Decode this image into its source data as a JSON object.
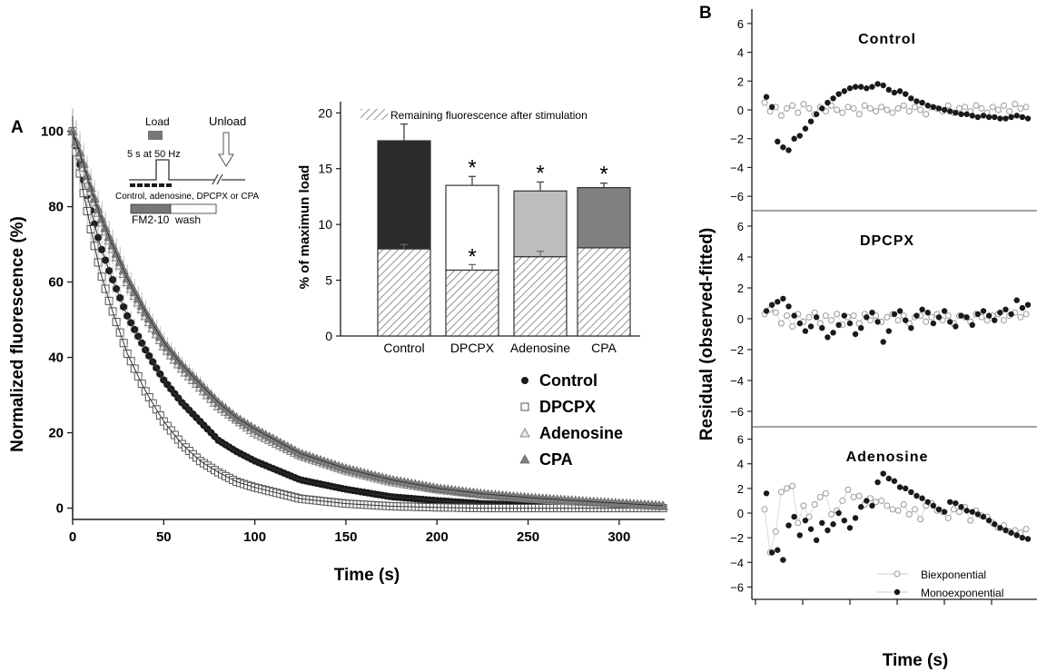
{
  "panel_labels": {
    "a": "A",
    "b": "B"
  },
  "colors": {
    "black": "#1a1a1a",
    "control_bar": "#2a2a2a",
    "adenosine_bar": "#bdbdbd",
    "cpa_bar": "#808080",
    "white": "#ffffff",
    "hatch": "#9a9a9a",
    "load_bar": "#777777",
    "trace": "#7a7a7a"
  },
  "protocol_inset": {
    "load_label": "Load",
    "unload_label": "Unload",
    "stim_label": "5 s at 50 Hz",
    "drugs_label": "Control, adenosine, DPCPX or CPA",
    "dye_label": "FM2-10",
    "wash_label": "wash"
  },
  "chart_data": [
    {
      "id": "decay",
      "type": "scatter",
      "title": "",
      "xlabel": "Time (s)",
      "ylabel": "Normalized fluorescence (%)",
      "xlim": [
        0,
        325
      ],
      "ylim": [
        -3,
        104
      ],
      "xticks": [
        0,
        50,
        100,
        150,
        200,
        250,
        300
      ],
      "yticks": [
        0,
        20,
        40,
        60,
        80,
        100
      ],
      "legend_position": "right",
      "series": [
        {
          "name": "Control",
          "marker": "filled-circle",
          "x": [
            0,
            5,
            10,
            15,
            20,
            30,
            40,
            50,
            60,
            70,
            80,
            90,
            100,
            125,
            150,
            175,
            200,
            225,
            250,
            275,
            300,
            325
          ],
          "y": [
            100,
            89,
            79,
            70,
            63,
            51,
            42,
            34,
            28,
            23,
            18,
            15,
            12.5,
            7.5,
            5,
            3,
            2,
            1.2,
            0.8,
            0.5,
            0.2,
            0
          ]
        },
        {
          "name": "DPCPX",
          "marker": "open-square",
          "x": [
            0,
            5,
            10,
            15,
            20,
            30,
            40,
            50,
            60,
            70,
            80,
            90,
            100,
            125,
            150,
            175,
            200,
            225,
            250,
            275,
            300,
            325
          ],
          "y": [
            100,
            86,
            74,
            63,
            55,
            41,
            31,
            23,
            17,
            12.5,
            9.5,
            7,
            5.5,
            2.5,
            1.2,
            0.5,
            0.2,
            0,
            0,
            0,
            0,
            0
          ]
        },
        {
          "name": "Adenosine",
          "marker": "open-triangle",
          "x": [
            0,
            5,
            10,
            15,
            20,
            30,
            40,
            50,
            60,
            70,
            80,
            90,
            100,
            125,
            150,
            175,
            200,
            225,
            250,
            275,
            300,
            325
          ],
          "y": [
            100,
            92,
            84,
            77,
            71,
            60,
            51,
            43,
            37,
            32,
            27,
            23.5,
            20,
            14,
            10,
            7,
            5,
            3.6,
            2.6,
            1.8,
            1.2,
            0.5
          ]
        },
        {
          "name": "CPA",
          "marker": "filled-triangle",
          "x": [
            0,
            5,
            10,
            15,
            20,
            30,
            40,
            50,
            60,
            70,
            80,
            90,
            100,
            125,
            150,
            175,
            200,
            225,
            250,
            275,
            300,
            325
          ],
          "y": [
            100,
            93,
            85,
            78,
            72,
            61,
            52,
            44,
            38,
            33,
            28,
            24,
            21,
            14.5,
            10.5,
            7.5,
            5.3,
            3.8,
            2.8,
            2,
            1.3,
            0.6
          ]
        }
      ]
    },
    {
      "id": "inset-bars",
      "type": "bar",
      "title": "",
      "xlabel": "",
      "ylabel": "% of maximun load",
      "ylim": [
        0,
        21
      ],
      "yticks": [
        0,
        5,
        10,
        15,
        20
      ],
      "legend_position": "top",
      "legend": "Remaining fluorescence after stimulation",
      "categories": [
        "Control",
        "DPCPX",
        "Adenosine",
        "CPA"
      ],
      "series": [
        {
          "name": "Remaining fluorescence after stimulation",
          "values": [
            7.8,
            5.9,
            7.1,
            7.9
          ],
          "errors": [
            0.4,
            0.5,
            0.5,
            0
          ]
        },
        {
          "name": "",
          "values": [
            17.5,
            13.5,
            13.0,
            13.3
          ],
          "errors": [
            1.5,
            0.8,
            0.8,
            0.4
          ]
        }
      ],
      "significance": {
        "total": [
          "",
          "*",
          "*",
          "*"
        ],
        "remaining": [
          "",
          "*",
          "",
          ""
        ]
      }
    },
    {
      "id": "residuals",
      "type": "scatter",
      "ylabel": "Residual (observed-fitted)",
      "xlabel": "Time (s)",
      "ylim": [
        -7,
        7
      ],
      "yticks": [
        -6,
        -4,
        -2,
        0,
        2,
        4,
        6
      ],
      "legend_position": "bottom-right",
      "legend": [
        "Biexponential",
        "Monoexponential"
      ],
      "panels": [
        {
          "title": "Control",
          "monoexponential": [
            0.9,
            0.2,
            -2.2,
            -2.6,
            -2.8,
            -2.0,
            -1.8,
            -1.3,
            -0.8,
            -0.3,
            0.1,
            0.5,
            0.8,
            1.1,
            1.3,
            1.5,
            1.6,
            1.6,
            1.5,
            1.6,
            1.8,
            1.7,
            1.4,
            1.2,
            1.3,
            1.1,
            0.8,
            0.6,
            0.5,
            0.3,
            0.2,
            0.1,
            0,
            -0.1,
            -0.2,
            -0.3,
            -0.3,
            -0.4,
            -0.5,
            -0.4,
            -0.5,
            -0.5,
            -0.6,
            -0.6,
            -0.5,
            -0.4,
            -0.5,
            -0.6
          ],
          "biexponential": [
            0.5,
            -0.1,
            0.2,
            -0.4,
            0.1,
            0.3,
            -0.2,
            0.4,
            0.1,
            -0.3,
            0.2,
            -0.1,
            0.3,
            0,
            -0.2,
            0.2,
            0.1,
            -0.3,
            0.3,
            0.1,
            -0.1,
            0.2,
            0,
            -0.2,
            0.1,
            0.3,
            -0.1,
            0.2,
            0,
            -0.3,
            0.2,
            0.1,
            -0.1,
            0.3,
            -0.2,
            0.1,
            0.2,
            -0.1,
            0.3,
            0.1,
            -0.2,
            0.2,
            0,
            0.3,
            -0.1,
            0.4,
            0.1,
            0.2
          ]
        },
        {
          "title": "DPCPX",
          "monoexponential": [
            0.5,
            0.9,
            1.1,
            1.3,
            0.8,
            0.2,
            -0.3,
            -0.8,
            -0.5,
            0.1,
            -0.6,
            -1.2,
            -0.9,
            -0.4,
            0.2,
            -0.3,
            -1.0,
            -0.6,
            0.1,
            0.4,
            -0.2,
            -1.5,
            -0.8,
            0.3,
            0.5,
            -0.1,
            -0.6,
            0.2,
            0.6,
            0.4,
            -0.3,
            0.1,
            0.5,
            -0.2,
            -0.5,
            0.2,
            0.1,
            -0.4,
            0.3,
            0.5,
            0.2,
            -0.1,
            0.4,
            0.6,
            0.3,
            1.2,
            0.7,
            0.9
          ],
          "biexponential": [
            0.3,
            0.6,
            0.4,
            -0.3,
            0.2,
            -0.5,
            0.3,
            -0.2,
            0.1,
            0.4,
            -0.3,
            0.2,
            -0.1,
            0.3,
            -0.4,
            0.1,
            0.2,
            -0.3,
            0.3,
            -0.1,
            0.2,
            -0.2,
            0.1,
            0.3,
            -0.1,
            0.2,
            -0.3,
            0.1,
            0.2,
            -0.2,
            0.1,
            0.3,
            -0.1,
            0.2,
            -0.3,
            0.2,
            0.1,
            -0.2,
            0.3,
            0.1,
            -0.1,
            0.2,
            0.3,
            -0.1,
            0.2,
            0.4,
            0.1,
            0.3
          ]
        },
        {
          "title": "Adenosine",
          "monoexponential": [
            1.6,
            -3.2,
            -3.0,
            -3.8,
            -1.0,
            -0.3,
            -1.8,
            -0.6,
            -1.3,
            -2.2,
            -0.8,
            -1.4,
            -0.9,
            0,
            -0.6,
            -1.2,
            -0.4,
            0.5,
            1.0,
            0.6,
            2.5,
            3.2,
            2.8,
            2.6,
            2.1,
            2.0,
            1.7,
            1.4,
            1.2,
            0.9,
            0.6,
            0.3,
            0.1,
            0.9,
            0.8,
            0.5,
            0.2,
            0.1,
            -0.1,
            -0.3,
            -0.6,
            -0.9,
            -1.2,
            -1.4,
            -1.6,
            -1.8,
            -2.0,
            -2.1
          ],
          "biexponential": [
            0.3,
            -3.2,
            -1.5,
            1.7,
            2.0,
            2.2,
            -0.8,
            0.6,
            -0.3,
            0.7,
            1.3,
            1.6,
            -0.1,
            0.2,
            1.0,
            1.9,
            1.3,
            1.4,
            0.7,
            1.2,
            0.9,
            1.0,
            0.6,
            0.3,
            0.2,
            0.7,
            -0.1,
            0.3,
            -0.5,
            0.6,
            0.8,
            0.2,
            0.1,
            -0.4,
            0.3,
            0.1,
            0.5,
            -0.6,
            0.2,
            -0.2,
            -0.3,
            -0.8,
            -1.2,
            -1.0,
            -1.5,
            -1.4,
            -1.6,
            -1.3
          ]
        }
      ]
    }
  ]
}
